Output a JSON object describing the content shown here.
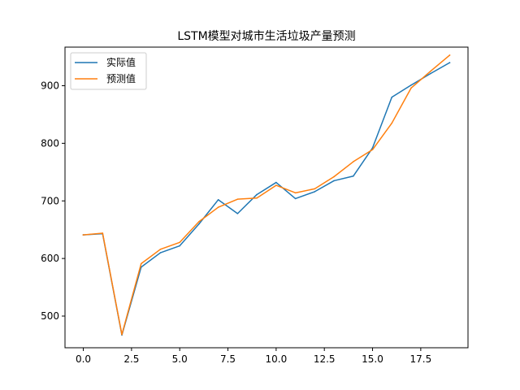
{
  "chart_data": {
    "type": "line",
    "title": "LSTM模型对城市生活垃圾产量预测",
    "xlabel": "",
    "ylabel": "",
    "xlim": [
      -0.95,
      19.95
    ],
    "ylim": [
      445,
      967
    ],
    "x_ticks": [
      0.0,
      2.5,
      5.0,
      7.5,
      10.0,
      12.5,
      15.0,
      17.5
    ],
    "x_tick_labels": [
      "0.0",
      "2.5",
      "5.0",
      "7.5",
      "10.0",
      "12.5",
      "15.0",
      "17.5"
    ],
    "y_ticks": [
      500,
      600,
      700,
      800,
      900
    ],
    "y_tick_labels": [
      "500",
      "600",
      "700",
      "800",
      "900"
    ],
    "grid": false,
    "legend_position": "upper-left",
    "x": [
      0,
      1,
      2,
      3,
      4,
      5,
      6,
      7,
      8,
      9,
      10,
      11,
      12,
      13,
      14,
      15,
      16,
      17,
      18,
      19
    ],
    "series": [
      {
        "name": "实际值",
        "color": "#1f77b4",
        "values": [
          641,
          643,
          467,
          585,
          610,
          622,
          660,
          702,
          678,
          711,
          732,
          704,
          716,
          735,
          743,
          792,
          880,
          901,
          921,
          940
        ]
      },
      {
        "name": "预测值",
        "color": "#ff7f0e",
        "values": [
          641,
          644,
          468,
          591,
          616,
          628,
          664,
          689,
          703,
          705,
          727,
          714,
          721,
          742,
          768,
          789,
          835,
          896,
          925,
          953
        ]
      }
    ]
  }
}
